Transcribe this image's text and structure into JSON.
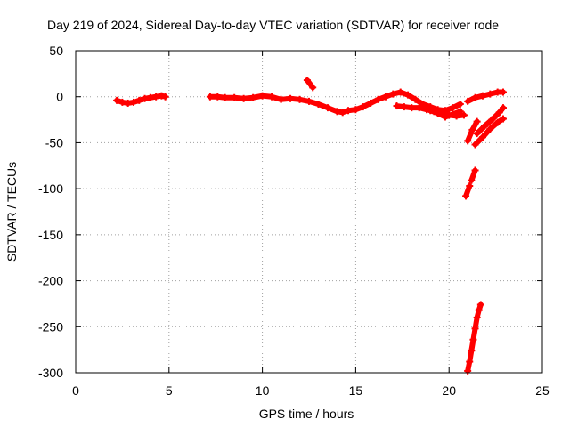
{
  "chart_data": {
    "type": "scatter",
    "title": "Day 219 of 2024, Sidereal Day-to-day VTEC variation (SDTVAR) for receiver rode",
    "xlabel": "GPS time / hours",
    "ylabel": "SDTVAR / TECUs",
    "xlim": [
      0,
      25
    ],
    "ylim": [
      -300,
      50
    ],
    "x_ticks": [
      "0",
      "5",
      "10",
      "15",
      "20",
      "25"
    ],
    "y_ticks": [
      "50",
      "0",
      "-50",
      "-100",
      "-150",
      "-200",
      "-250",
      "-300"
    ],
    "grid": true,
    "legend": "none",
    "marker_color": "#ff0000",
    "series": [
      {
        "x": [
          2.2,
          2.5,
          2.8,
          3.1,
          3.4,
          3.7,
          4.0,
          4.3,
          4.6,
          4.8
        ],
        "y": [
          -4,
          -6,
          -7,
          -6,
          -4,
          -2,
          -1,
          0,
          1,
          0
        ]
      },
      {
        "x": [
          7.2,
          7.6,
          8.0,
          8.5,
          9.0,
          9.5,
          10.0,
          10.5,
          11.0,
          11.5,
          12.0,
          12.5,
          13.0,
          13.5,
          14.0,
          14.3,
          14.6,
          15.0,
          15.4,
          15.8,
          16.2,
          16.6,
          17.0,
          17.4,
          17.8,
          18.2,
          18.6,
          19.0,
          19.4,
          19.8,
          20.2,
          20.6
        ],
        "y": [
          0,
          0,
          -1,
          -1,
          -2,
          -1,
          1,
          0,
          -3,
          -2,
          -3,
          -5,
          -8,
          -12,
          -16,
          -17,
          -15,
          -14,
          -11,
          -7,
          -3,
          0,
          3,
          5,
          2,
          -3,
          -8,
          -11,
          -14,
          -15,
          -12,
          -8
        ]
      },
      {
        "x": [
          17.2,
          17.6,
          18.0,
          18.4,
          18.8,
          19.2,
          19.6,
          20.0,
          20.4,
          20.8
        ],
        "y": [
          -10,
          -11,
          -12,
          -12,
          -14,
          -16,
          -18,
          -20,
          -21,
          -20
        ]
      },
      {
        "x": [
          19.0,
          19.4,
          19.8,
          20.2,
          20.6
        ],
        "y": [
          -15,
          -18,
          -22,
          -19,
          -16
        ]
      },
      {
        "x": [
          12.4,
          12.7
        ],
        "y": [
          18,
          10
        ]
      },
      {
        "x": [
          21.0,
          21.4,
          21.8,
          22.2,
          22.6,
          22.9
        ],
        "y": [
          -5,
          -1,
          1,
          3,
          5,
          5
        ]
      },
      {
        "x": [
          21.4,
          21.8,
          22.2,
          22.6,
          22.9
        ],
        "y": [
          -52,
          -44,
          -35,
          -28,
          -24
        ]
      },
      {
        "x": [
          21.5,
          21.9,
          22.3,
          22.7,
          22.9
        ],
        "y": [
          -40,
          -32,
          -25,
          -17,
          -12
        ]
      },
      {
        "x": [
          21.0,
          21.25,
          21.5
        ],
        "y": [
          -48,
          -36,
          -27
        ]
      },
      {
        "x": [
          21.2,
          21.4
        ],
        "y": [
          -91,
          -80
        ]
      },
      {
        "x": [
          20.9,
          21.1
        ],
        "y": [
          -108,
          -97
        ]
      },
      {
        "x": [
          21.0,
          21.1,
          21.2,
          21.3,
          21.4,
          21.5,
          21.6,
          21.7
        ],
        "y": [
          -298,
          -288,
          -276,
          -264,
          -252,
          -240,
          -232,
          -226
        ]
      }
    ]
  }
}
